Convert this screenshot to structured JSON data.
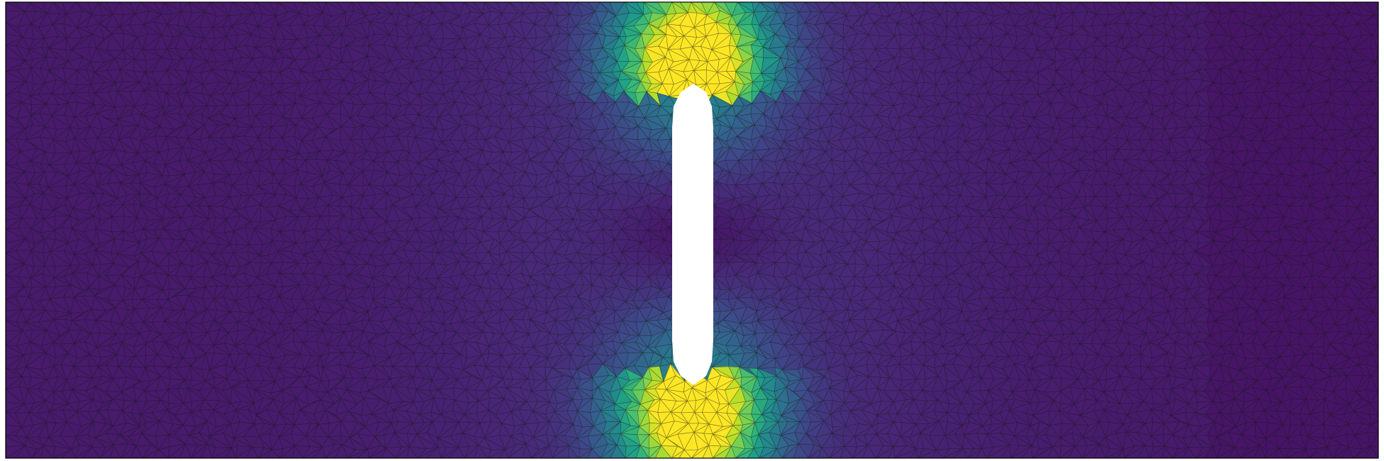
{
  "scene": {
    "kind": "fem-mesh-field-plot",
    "colormap": "viridis",
    "colormap_stops": [
      "#440154",
      "#482878",
      "#3e4989",
      "#31688e",
      "#26828e",
      "#1f9e89",
      "#35b779",
      "#6ece58",
      "#b5de2b",
      "#fde725"
    ],
    "mesh_line_color": "#1a1a1a",
    "domain_border_color": "#000000",
    "hole_fill": "#ffffff",
    "element_type": "triangle",
    "hole_shape": "slot"
  }
}
